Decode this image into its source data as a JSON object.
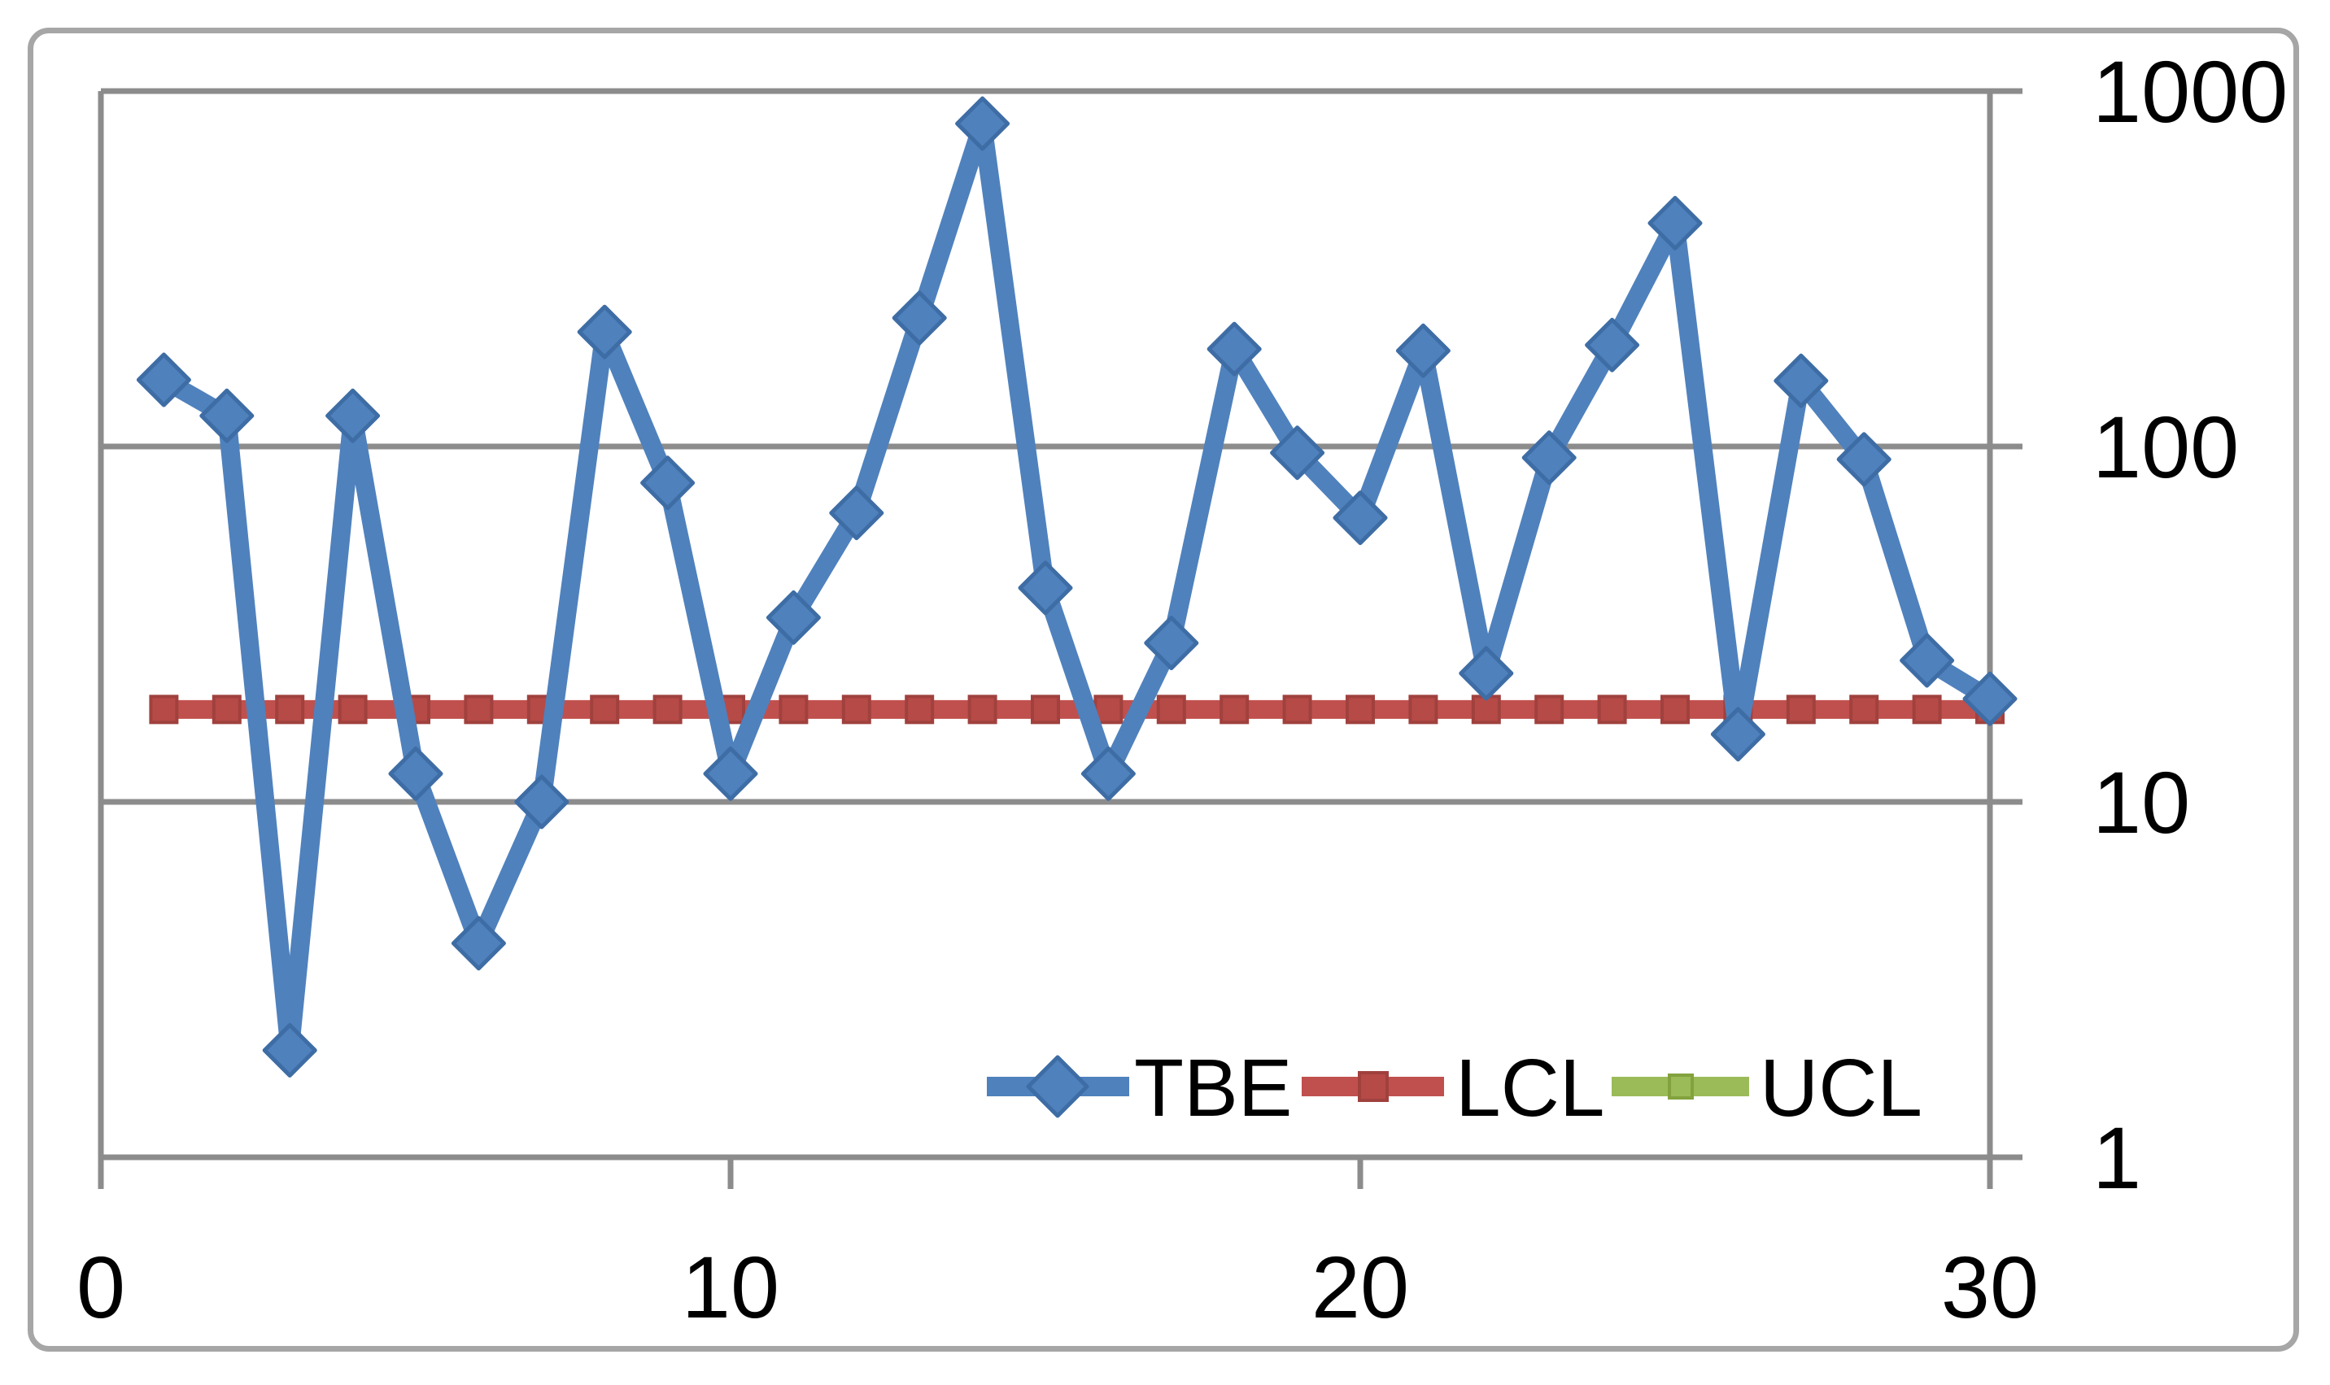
{
  "figure": {
    "background_color": "#ffffff",
    "frame_border_color": "#a6a6a6",
    "plot_border_color": "#8c8c8c",
    "gridline_color": "#8c8c8c",
    "text_color": "#000000"
  },
  "chart_data": {
    "type": "line",
    "title": "",
    "xlabel": "",
    "ylabel": "",
    "x": [
      1,
      2,
      3,
      4,
      5,
      6,
      7,
      8,
      9,
      10,
      11,
      12,
      13,
      14,
      15,
      16,
      17,
      18,
      19,
      20,
      21,
      22,
      23,
      24,
      25,
      26,
      27,
      28,
      29,
      30
    ],
    "series": [
      {
        "name": "TBE",
        "color": "#4F81BD",
        "marker": "diamond",
        "values": [
          154,
          122,
          2,
          122,
          12,
          4,
          10,
          210,
          79,
          12,
          33,
          65,
          230,
          810,
          40,
          12,
          28,
          188,
          96,
          63,
          186,
          23,
          93,
          193,
          425,
          15.5,
          153,
          92,
          25,
          19.5
        ]
      },
      {
        "name": "LCL",
        "color": "#C0504D",
        "marker": "square",
        "constant_value": 18.2
      },
      {
        "name": "UCL",
        "color": "#9BBB59",
        "marker": "square",
        "visible_in_plot": false
      }
    ],
    "x_axis": {
      "min": 0,
      "max": 30,
      "tick_labels": [
        "0",
        "10",
        "20",
        "30"
      ],
      "tick_values": [
        0,
        10,
        20,
        30
      ]
    },
    "y_axis": {
      "scale": "log",
      "min": 1,
      "max": 1000,
      "side": "right",
      "tick_labels": [
        "1",
        "10",
        "100",
        "1000"
      ],
      "tick_values": [
        1,
        10,
        100,
        1000
      ]
    },
    "grid": "horizontal major gridlines",
    "legend": {
      "position": "inside bottom, center-right",
      "entries": [
        {
          "label": "TBE",
          "color": "#4F81BD",
          "marker": "diamond"
        },
        {
          "label": "LCL",
          "color": "#C0504D",
          "marker": "square"
        },
        {
          "label": "UCL",
          "color": "#9BBB59",
          "marker": "square"
        }
      ]
    }
  }
}
